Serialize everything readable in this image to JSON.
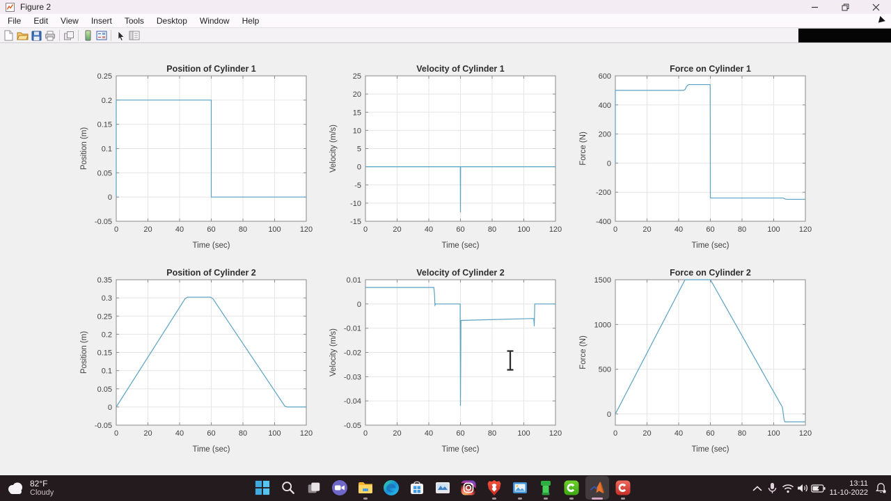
{
  "window": {
    "title": "Figure 2"
  },
  "menu": {
    "items": [
      "File",
      "Edit",
      "View",
      "Insert",
      "Tools",
      "Desktop",
      "Window",
      "Help"
    ]
  },
  "toolbar": {
    "buttons": [
      "new-figure",
      "open-file",
      "save-figure",
      "print-figure",
      "link-plot",
      "insert-colorbar",
      "insert-legend",
      "edit-plot",
      "property-inspector"
    ]
  },
  "chart_style": {
    "line_color": "#5aa2c3",
    "grid_color": "#e5e5e5",
    "axis_color": "#8a8a8a",
    "background": "#ffffff"
  },
  "chart_data": [
    {
      "type": "line",
      "title": "Position of Cylinder 1",
      "xlabel": "Time (sec)",
      "ylabel": "Position (m)",
      "xlim": [
        0,
        120
      ],
      "ylim": [
        -0.05,
        0.25
      ],
      "xticks": [
        0,
        20,
        40,
        60,
        80,
        100,
        120
      ],
      "yticks": [
        -0.05,
        0,
        0.05,
        0.1,
        0.15,
        0.2,
        0.25
      ],
      "grid": true,
      "points": [
        [
          0,
          0
        ],
        [
          0,
          0.2
        ],
        [
          60,
          0.2
        ],
        [
          60,
          0
        ],
        [
          120,
          0
        ]
      ]
    },
    {
      "type": "line",
      "title": "Velocity of Cylinder 1",
      "xlabel": "Time (sec)",
      "ylabel": "Velocity (m/s)",
      "xlim": [
        0,
        120
      ],
      "ylim": [
        -15,
        25
      ],
      "xticks": [
        0,
        20,
        40,
        60,
        80,
        100,
        120
      ],
      "yticks": [
        -15,
        -10,
        -5,
        0,
        5,
        10,
        15,
        20,
        25
      ],
      "grid": true,
      "points": [
        [
          0,
          0
        ],
        [
          59.9,
          0
        ],
        [
          60,
          -12.5
        ],
        [
          60.1,
          0
        ],
        [
          120,
          0
        ]
      ]
    },
    {
      "type": "line",
      "title": "Force on Cylinder 1",
      "xlabel": "Time (sec)",
      "ylabel": "Force (N)",
      "xlim": [
        0,
        120
      ],
      "ylim": [
        -400,
        600
      ],
      "xticks": [
        0,
        20,
        40,
        60,
        80,
        100,
        120
      ],
      "yticks": [
        -400,
        -200,
        0,
        200,
        400,
        600
      ],
      "grid": true,
      "points": [
        [
          0,
          0
        ],
        [
          0,
          500
        ],
        [
          43,
          500
        ],
        [
          44,
          506
        ],
        [
          45,
          528
        ],
        [
          46,
          538
        ],
        [
          47,
          540
        ],
        [
          59.9,
          540
        ],
        [
          60,
          -240
        ],
        [
          106,
          -240
        ],
        [
          107,
          -246
        ],
        [
          108,
          -249
        ],
        [
          120,
          -249
        ]
      ]
    },
    {
      "type": "line",
      "title": "Position of Cylinder 2",
      "xlabel": "Time (sec)",
      "ylabel": "Position (m)",
      "xlim": [
        0,
        120
      ],
      "ylim": [
        -0.05,
        0.35
      ],
      "xticks": [
        0,
        20,
        40,
        60,
        80,
        100,
        120
      ],
      "yticks": [
        -0.05,
        0,
        0.05,
        0.1,
        0.15,
        0.2,
        0.25,
        0.3,
        0.35
      ],
      "grid": true,
      "points": [
        [
          0,
          0
        ],
        [
          43.5,
          0.298
        ],
        [
          45,
          0.302
        ],
        [
          59.5,
          0.302
        ],
        [
          61,
          0.298
        ],
        [
          106.5,
          0.002
        ],
        [
          108,
          0
        ],
        [
          120,
          0
        ]
      ]
    },
    {
      "type": "line",
      "title": "Velocity of Cylinder 2",
      "xlabel": "Time (sec)",
      "ylabel": "Velocity (m/s)",
      "xlim": [
        0,
        120
      ],
      "ylim": [
        -0.05,
        0.01
      ],
      "xticks": [
        0,
        20,
        40,
        60,
        80,
        100,
        120
      ],
      "yticks": [
        -0.05,
        -0.04,
        -0.03,
        -0.02,
        -0.01,
        0,
        0.01
      ],
      "grid": true,
      "points": [
        [
          0,
          0.0068
        ],
        [
          43.2,
          0.0068
        ],
        [
          43.6,
          0.004
        ],
        [
          43.9,
          -0.0005
        ],
        [
          44.3,
          0
        ],
        [
          59.8,
          0
        ],
        [
          60,
          -0.042
        ],
        [
          60.3,
          -0.0068
        ],
        [
          106.3,
          -0.006
        ],
        [
          106.6,
          -0.0092
        ],
        [
          106.9,
          0
        ],
        [
          120,
          0
        ]
      ]
    },
    {
      "type": "line",
      "title": "Force on Cylinder 2",
      "xlabel": "Time (sec)",
      "ylabel": "Force (N)",
      "xlim": [
        0,
        120
      ],
      "ylim": [
        -125,
        1500
      ],
      "xticks": [
        0,
        20,
        40,
        60,
        80,
        100,
        120
      ],
      "yticks": [
        0,
        500,
        1000,
        1500
      ],
      "grid": true,
      "points": [
        [
          0,
          0
        ],
        [
          44,
          1500
        ],
        [
          60,
          1500
        ],
        [
          61,
          1470
        ],
        [
          105.5,
          75
        ],
        [
          106.5,
          -60
        ],
        [
          107,
          -88
        ],
        [
          120,
          -88
        ]
      ]
    }
  ],
  "taskbar": {
    "weather": {
      "temperature": "82°F",
      "condition": "Cloudy"
    },
    "apps": [
      "start",
      "search",
      "task-view",
      "chat",
      "file-explorer",
      "edge",
      "microsoft-store",
      "media-app",
      "instagram",
      "brave",
      "photos-app",
      "pipe-app",
      "camtasia",
      "matlab",
      "camtasia-recorder"
    ],
    "open_apps": [
      "file-explorer",
      "brave",
      "photos-app",
      "pipe-app",
      "camtasia",
      "matlab",
      "camtasia-recorder"
    ],
    "active_app": "matlab",
    "tray": {
      "icons": [
        "hidden-icons-chevron",
        "microphone",
        "wifi",
        "volume",
        "battery"
      ],
      "time": "13:11",
      "date": "11-10-2022",
      "notification_icon": "bell"
    }
  },
  "cursor": {
    "type": "i-beam"
  }
}
